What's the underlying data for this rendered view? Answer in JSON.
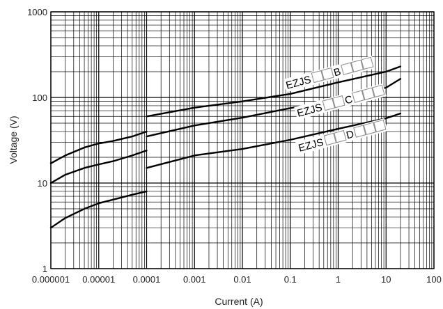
{
  "chart_data": {
    "type": "line",
    "xlabel": "Current (A)",
    "ylabel": "Voltage (V)",
    "x_scale": "log",
    "y_scale": "log",
    "xlim": [
      1e-06,
      100
    ],
    "ylim": [
      1,
      1000
    ],
    "x_tick_labels": [
      "0.000001",
      "0.00001",
      "0.0001",
      "0.001",
      "0.01",
      "0.1",
      "1",
      "10",
      "100"
    ],
    "y_tick_labels": [
      "1",
      "10",
      "100",
      "1000"
    ],
    "grid": true,
    "series": [
      {
        "name": "EZJS□□B□□□",
        "segments": [
          {
            "x": [
              1e-06,
              2e-06,
              5e-06,
              1e-05,
              2e-05,
              5e-05,
              0.0001
            ],
            "y": [
              17,
              21,
              26,
              29,
              31,
              35,
              40
            ]
          },
          {
            "x": [
              0.0001,
              0.001,
              0.01,
              0.1,
              1,
              10,
              20
            ],
            "y": [
              60,
              76,
              90,
              110,
              150,
              200,
              230
            ]
          }
        ]
      },
      {
        "name": "EZJS□□C□□□",
        "segments": [
          {
            "x": [
              1e-06,
              2e-06,
              5e-06,
              1e-05,
              2e-05,
              5e-05,
              0.0001
            ],
            "y": [
              10,
              12.5,
              15,
              16.5,
              18,
              21,
              24
            ]
          },
          {
            "x": [
              0.0001,
              0.001,
              0.01,
              0.1,
              1,
              10,
              20
            ],
            "y": [
              35,
              47,
              58,
              75,
              95,
              130,
              165
            ]
          }
        ]
      },
      {
        "name": "EZJS□□D□□□",
        "segments": [
          {
            "x": [
              1e-06,
              2e-06,
              5e-06,
              1e-05,
              2e-05,
              5e-05,
              0.0001
            ],
            "y": [
              3,
              3.9,
              5,
              5.8,
              6.4,
              7.3,
              8
            ]
          },
          {
            "x": [
              0.0001,
              0.001,
              0.01,
              0.1,
              1,
              10,
              20
            ],
            "y": [
              15,
              21,
              25,
              32,
              43,
              57,
              65
            ]
          }
        ]
      }
    ]
  },
  "series_labels": [
    {
      "prefix": "EZJS",
      "code": "B"
    },
    {
      "prefix": "EZJS",
      "code": "C"
    },
    {
      "prefix": "EZJS",
      "code": "D"
    }
  ],
  "colors": {
    "grid": "#000000",
    "line": "#000000",
    "background": "#ffffff"
  }
}
